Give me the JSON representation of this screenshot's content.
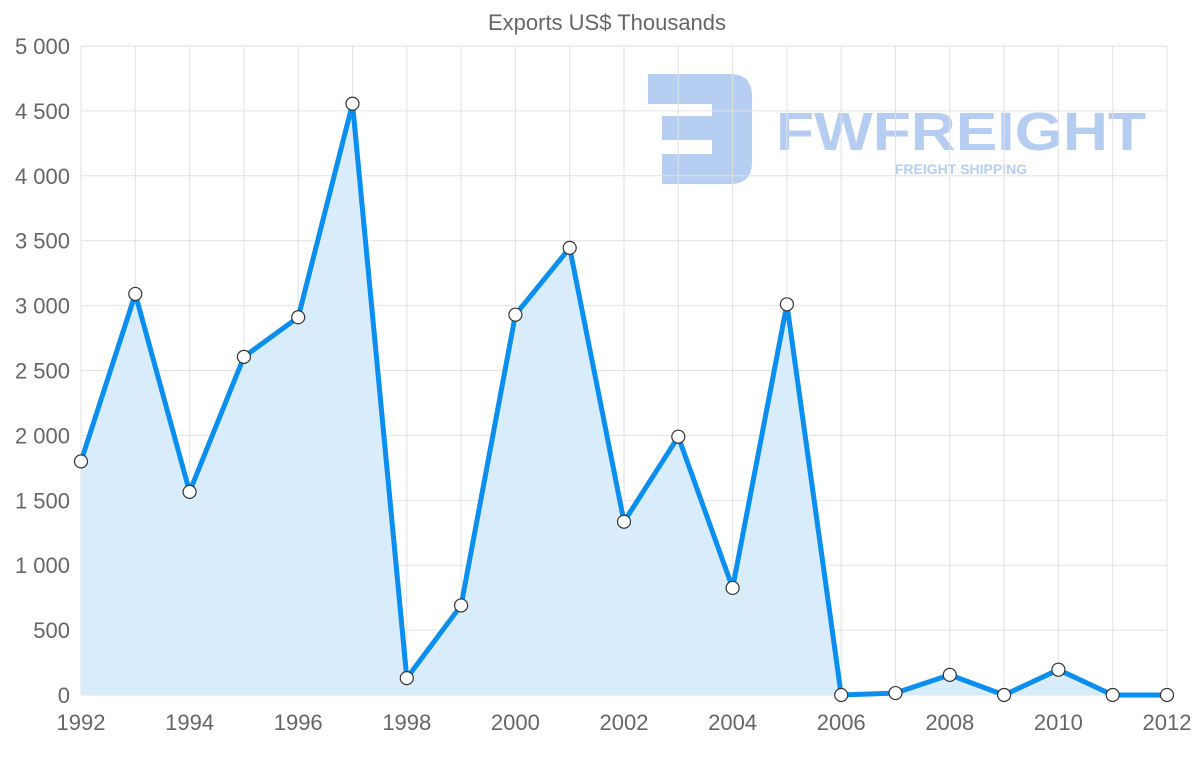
{
  "chart_data": {
    "type": "area",
    "title": "Exports US$ Thousands",
    "xlabel": "",
    "ylabel": "",
    "x": [
      1992,
      1993,
      1994,
      1995,
      1996,
      1997,
      1998,
      1999,
      2000,
      2001,
      2002,
      2003,
      2004,
      2005,
      2006,
      2007,
      2008,
      2009,
      2010,
      2011,
      2012
    ],
    "series": [
      {
        "name": "Exports",
        "values": [
          1800,
          3090,
          1565,
          2605,
          2910,
          4555,
          130,
          690,
          2930,
          3445,
          1335,
          1990,
          825,
          3010,
          0,
          15,
          155,
          0,
          195,
          0,
          0
        ]
      }
    ],
    "xlim": [
      1992,
      2012
    ],
    "ylim": [
      0,
      5000
    ],
    "x_ticks": [
      "1992",
      "1994",
      "1996",
      "1998",
      "2000",
      "2002",
      "2004",
      "2006",
      "2008",
      "2010",
      "2012"
    ],
    "y_ticks": [
      "0",
      "500",
      "1 000",
      "1 500",
      "2 000",
      "2 500",
      "3 000",
      "3 500",
      "4 000",
      "4 500",
      "5 000"
    ],
    "grid": true,
    "colors": {
      "line": "#0a8ff0",
      "fill": "#d9ecfc",
      "grid": "#e2e2e2",
      "text": "#666666"
    }
  },
  "watermark": {
    "brand": "FWFREIGHT",
    "tagline": "FREIGHT SHIPPING",
    "color": "#b3cbf2"
  }
}
